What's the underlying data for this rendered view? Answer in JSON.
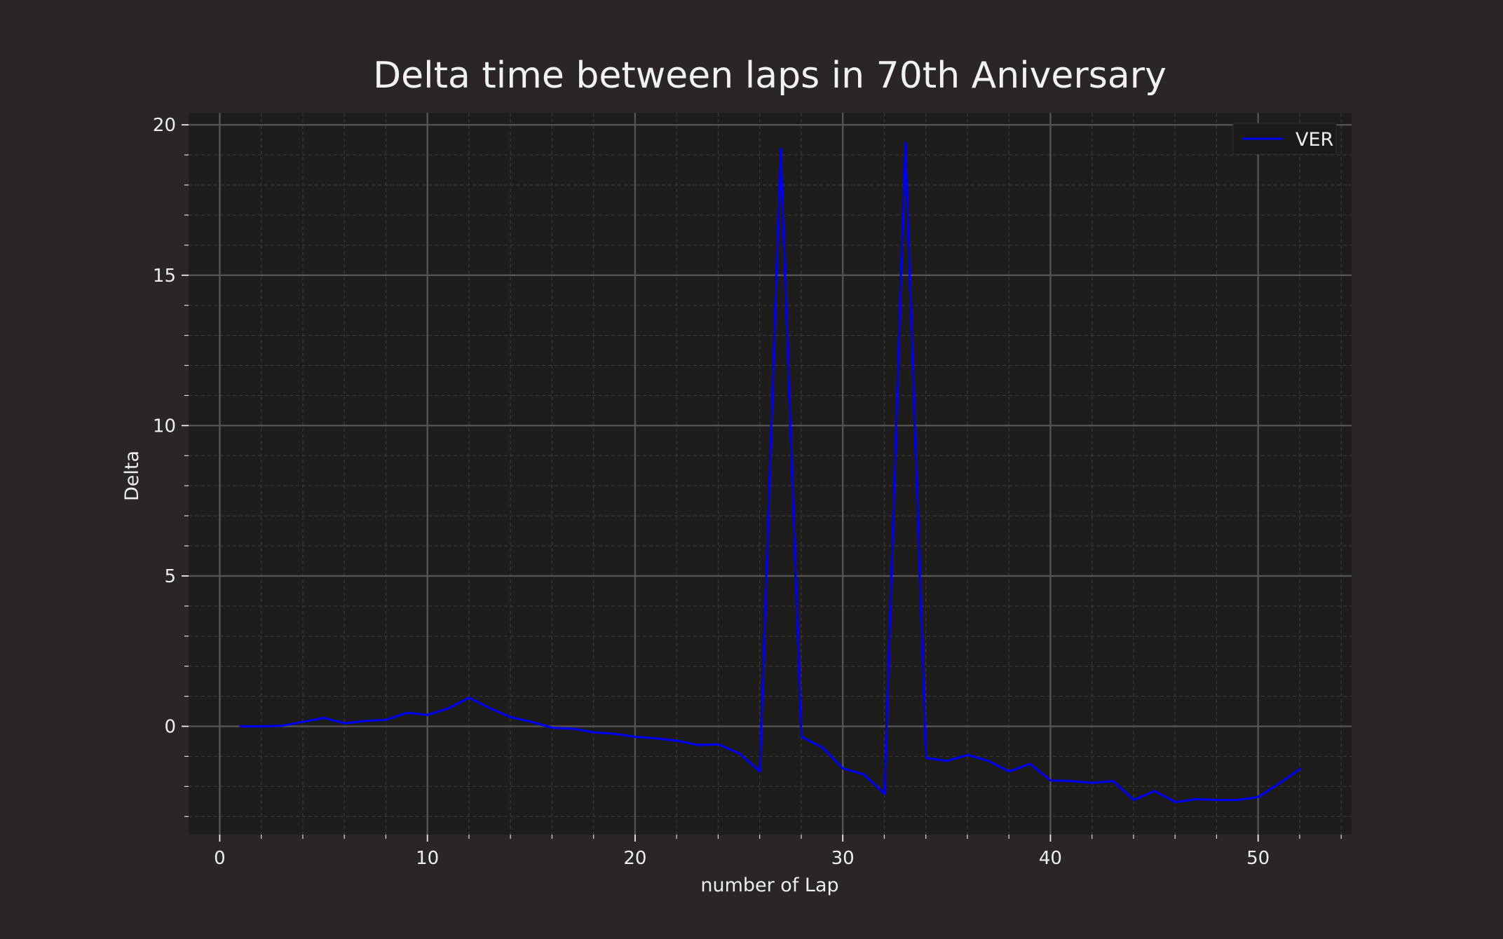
{
  "chart_data": {
    "type": "line",
    "title": "Delta time between laps in 70th Aniversary",
    "xlabel": "number of Lap",
    "ylabel": "Delta",
    "xlim": [
      -1.5,
      54.5
    ],
    "ylim": [
      -3.6,
      20.4
    ],
    "xticks": [
      0,
      10,
      20,
      30,
      40,
      50
    ],
    "yticks": [
      0,
      5,
      10,
      15,
      20
    ],
    "xtick_labels": [
      "0",
      "10",
      "20",
      "30",
      "40",
      "50"
    ],
    "ytick_labels": [
      "0",
      "5",
      "10",
      "15",
      "20"
    ],
    "grid": true,
    "minor_grid": true,
    "legend_position": "top-right",
    "colors": {
      "figure_bg": "#292625",
      "axes_bg": "#1e1d1c",
      "major_grid": "#555352",
      "minor_grid": "#3a3837",
      "text": "#eeeeee"
    },
    "series": [
      {
        "name": "VER",
        "color": "#0000ee",
        "x": [
          1,
          2,
          3,
          4,
          5,
          6,
          7,
          8,
          9,
          10,
          11,
          12,
          13,
          14,
          15,
          16,
          17,
          18,
          19,
          20,
          21,
          22,
          23,
          24,
          25,
          26,
          27,
          28,
          29,
          30,
          31,
          32,
          33,
          34,
          35,
          36,
          37,
          38,
          39,
          40,
          41,
          42,
          43,
          44,
          45,
          46,
          47,
          48,
          49,
          50,
          51,
          52
        ],
        "y": [
          0.0,
          0.0,
          0.02,
          0.15,
          0.28,
          0.1,
          0.18,
          0.22,
          0.45,
          0.38,
          0.6,
          0.95,
          0.6,
          0.3,
          0.15,
          -0.05,
          -0.08,
          -0.2,
          -0.25,
          -0.35,
          -0.4,
          -0.48,
          -0.62,
          -0.6,
          -0.9,
          -1.5,
          19.2,
          -0.35,
          -0.7,
          -1.4,
          -1.6,
          -2.25,
          19.4,
          -1.05,
          -1.15,
          -0.95,
          -1.15,
          -1.5,
          -1.25,
          -1.8,
          -1.82,
          -1.88,
          -1.82,
          -2.45,
          -2.15,
          -2.52,
          -2.42,
          -2.45,
          -2.45,
          -2.35,
          -1.9,
          -1.42
        ]
      }
    ]
  }
}
